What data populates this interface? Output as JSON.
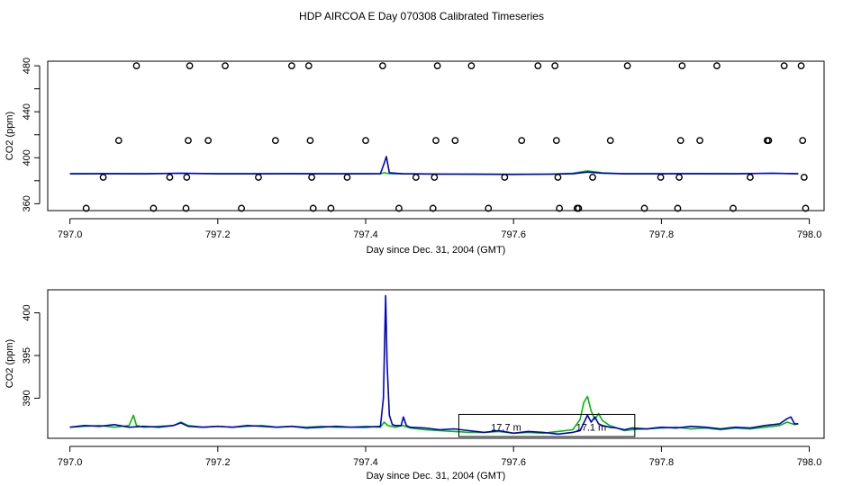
{
  "figure": {
    "title": "HDP AIRCOA E  Day 070308  Calibrated Timeseries"
  },
  "colors": {
    "green": "#00bb00",
    "blue": "#0000cc",
    "black": "#000000"
  },
  "chart_data": [
    {
      "type": "scatter",
      "xlabel": "Day since Dec. 31, 2004 (GMT)",
      "ylabel": "CO2 (ppm)",
      "xlim": [
        796.97,
        798.02
      ],
      "ylim": [
        354,
        484
      ],
      "xticks": [
        "797.0",
        "797.2",
        "797.4",
        "797.6",
        "797.8",
        "798.0"
      ],
      "yticks": [
        "360",
        "400",
        "440",
        "480"
      ],
      "y_minor_ticks": [
        380,
        420,
        460
      ],
      "grid": false,
      "points": [
        {
          "x": 797.022,
          "y": 356
        },
        {
          "x": 797.045,
          "y": 383
        },
        {
          "x": 797.066,
          "y": 415
        },
        {
          "x": 797.09,
          "y": 480
        },
        {
          "x": 797.113,
          "y": 356
        },
        {
          "x": 797.135,
          "y": 383
        },
        {
          "x": 797.157,
          "y": 356
        },
        {
          "x": 797.158,
          "y": 383
        },
        {
          "x": 797.16,
          "y": 415
        },
        {
          "x": 797.162,
          "y": 480
        },
        {
          "x": 797.187,
          "y": 415
        },
        {
          "x": 797.21,
          "y": 480
        },
        {
          "x": 797.232,
          "y": 356
        },
        {
          "x": 797.255,
          "y": 383
        },
        {
          "x": 797.278,
          "y": 415
        },
        {
          "x": 797.3,
          "y": 480
        },
        {
          "x": 797.323,
          "y": 480
        },
        {
          "x": 797.325,
          "y": 415
        },
        {
          "x": 797.327,
          "y": 383
        },
        {
          "x": 797.329,
          "y": 356
        },
        {
          "x": 797.353,
          "y": 356
        },
        {
          "x": 797.375,
          "y": 383
        },
        {
          "x": 797.4,
          "y": 415
        },
        {
          "x": 797.423,
          "y": 480
        },
        {
          "x": 797.445,
          "y": 356
        },
        {
          "x": 797.468,
          "y": 383
        },
        {
          "x": 797.491,
          "y": 356
        },
        {
          "x": 797.493,
          "y": 383
        },
        {
          "x": 797.495,
          "y": 415
        },
        {
          "x": 797.497,
          "y": 480
        },
        {
          "x": 797.521,
          "y": 415
        },
        {
          "x": 797.543,
          "y": 480
        },
        {
          "x": 797.566,
          "y": 356
        },
        {
          "x": 797.588,
          "y": 383
        },
        {
          "x": 797.611,
          "y": 415
        },
        {
          "x": 797.633,
          "y": 480
        },
        {
          "x": 797.656,
          "y": 480
        },
        {
          "x": 797.658,
          "y": 415
        },
        {
          "x": 797.66,
          "y": 383
        },
        {
          "x": 797.662,
          "y": 356
        },
        {
          "x": 797.686,
          "y": 356
        },
        {
          "x": 797.688,
          "y": 356
        },
        {
          "x": 797.707,
          "y": 383
        },
        {
          "x": 797.731,
          "y": 415
        },
        {
          "x": 797.754,
          "y": 480
        },
        {
          "x": 797.777,
          "y": 356
        },
        {
          "x": 797.799,
          "y": 383
        },
        {
          "x": 797.822,
          "y": 356
        },
        {
          "x": 797.824,
          "y": 383
        },
        {
          "x": 797.826,
          "y": 415
        },
        {
          "x": 797.828,
          "y": 480
        },
        {
          "x": 797.852,
          "y": 415
        },
        {
          "x": 797.875,
          "y": 480
        },
        {
          "x": 797.897,
          "y": 356
        },
        {
          "x": 797.92,
          "y": 383
        },
        {
          "x": 797.943,
          "y": 415
        },
        {
          "x": 797.945,
          "y": 415
        },
        {
          "x": 797.966,
          "y": 480
        },
        {
          "x": 797.989,
          "y": 480
        },
        {
          "x": 797.991,
          "y": 415
        },
        {
          "x": 797.993,
          "y": 383
        },
        {
          "x": 797.995,
          "y": 356
        }
      ],
      "series": [
        {
          "color": "green",
          "x": [
            797.0,
            797.05,
            797.1,
            797.15,
            797.2,
            797.25,
            797.3,
            797.35,
            797.4,
            797.42,
            797.425,
            797.428,
            797.435,
            797.45,
            797.5,
            797.55,
            797.6,
            797.65,
            797.68,
            797.7,
            797.72,
            797.75,
            797.8,
            797.85,
            797.9,
            797.95,
            797.985
          ],
          "y": [
            386,
            386,
            386,
            386.4,
            386,
            386,
            386,
            386,
            386,
            386,
            387,
            386.5,
            386,
            386,
            385.8,
            385.7,
            385.6,
            385.8,
            386.5,
            388.5,
            387,
            386,
            386,
            386,
            386,
            386.5,
            386
          ]
        },
        {
          "color": "blue",
          "x": [
            797.0,
            797.05,
            797.1,
            797.15,
            797.2,
            797.25,
            797.3,
            797.35,
            797.4,
            797.42,
            797.425,
            797.428,
            797.432,
            797.45,
            797.5,
            797.55,
            797.6,
            797.65,
            797.68,
            797.7,
            797.72,
            797.75,
            797.8,
            797.85,
            797.9,
            797.95,
            797.985
          ],
          "y": [
            386,
            386.2,
            386,
            386.5,
            386,
            386,
            386.2,
            386,
            386,
            386.2,
            395,
            401,
            387,
            386,
            385.8,
            385.6,
            385.5,
            385.7,
            386,
            387.5,
            386.5,
            386,
            386,
            386.2,
            386,
            386.5,
            386
          ]
        }
      ]
    },
    {
      "type": "line",
      "xlabel": "Day since Dec. 31, 2004 (GMT)",
      "ylabel": "CO2 (ppm)",
      "xlim": [
        796.97,
        798.02
      ],
      "ylim": [
        385.3,
        402.7
      ],
      "xticks": [
        "797.0",
        "797.2",
        "797.4",
        "797.6",
        "797.8",
        "798.0"
      ],
      "yticks": [
        "390",
        "395",
        "400"
      ],
      "grid": false,
      "box": {
        "x1": 797.526,
        "x2": 797.764,
        "y1": 385.5,
        "y2": 388.1
      },
      "annotations": [
        {
          "text": "17.7 m",
          "x": 797.59,
          "y": 386.6
        },
        {
          "text": "17.1 m",
          "x": 797.705,
          "y": 386.6
        }
      ],
      "series": [
        {
          "color": "green",
          "x": [
            797.0,
            797.02,
            797.04,
            797.06,
            797.08,
            797.086,
            797.09,
            797.1,
            797.12,
            797.14,
            797.15,
            797.16,
            797.18,
            797.2,
            797.22,
            797.24,
            797.26,
            797.28,
            797.3,
            797.32,
            797.34,
            797.36,
            797.38,
            797.4,
            797.42,
            797.425,
            797.43,
            797.44,
            797.45,
            797.46,
            797.48,
            797.5,
            797.52,
            797.54,
            797.56,
            797.58,
            797.6,
            797.62,
            797.64,
            797.66,
            797.68,
            797.69,
            797.695,
            797.7,
            797.705,
            797.71,
            797.715,
            797.72,
            797.73,
            797.74,
            797.75,
            797.76,
            797.78,
            797.8,
            797.82,
            797.84,
            797.86,
            797.88,
            797.9,
            797.92,
            797.94,
            797.96,
            797.97,
            797.98,
            797.985
          ],
          "y": [
            386.6,
            386.7,
            386.8,
            386.6,
            386.8,
            388.0,
            386.8,
            386.6,
            386.7,
            386.8,
            387.2,
            386.8,
            386.6,
            386.7,
            386.6,
            386.7,
            386.8,
            386.6,
            386.7,
            386.6,
            386.7,
            386.6,
            386.6,
            386.7,
            386.6,
            387.2,
            386.8,
            386.6,
            386.8,
            386.5,
            386.3,
            386.2,
            386.1,
            386.0,
            386.0,
            386.1,
            385.9,
            386.0,
            385.9,
            386.1,
            386.3,
            387.5,
            389.5,
            390.2,
            388.5,
            387.5,
            388.2,
            387.4,
            386.8,
            386.5,
            386.2,
            386.3,
            386.4,
            386.5,
            386.6,
            386.4,
            386.5,
            386.3,
            386.5,
            386.4,
            386.6,
            386.8,
            387.2,
            386.9,
            387.0
          ]
        },
        {
          "color": "blue",
          "x": [
            797.0,
            797.02,
            797.04,
            797.06,
            797.08,
            797.1,
            797.12,
            797.14,
            797.15,
            797.16,
            797.18,
            797.2,
            797.22,
            797.24,
            797.26,
            797.28,
            797.3,
            797.32,
            797.34,
            797.36,
            797.38,
            797.4,
            797.42,
            797.424,
            797.427,
            797.429,
            797.432,
            797.436,
            797.44,
            797.448,
            797.451,
            797.455,
            797.46,
            797.48,
            797.5,
            797.52,
            797.54,
            797.56,
            797.58,
            797.6,
            797.62,
            797.64,
            797.66,
            797.68,
            797.69,
            797.7,
            797.705,
            797.71,
            797.715,
            797.72,
            797.73,
            797.74,
            797.75,
            797.76,
            797.78,
            797.8,
            797.82,
            797.84,
            797.86,
            797.88,
            797.9,
            797.92,
            797.94,
            797.96,
            797.97,
            797.975,
            797.98,
            797.985
          ],
          "y": [
            386.6,
            386.8,
            386.7,
            386.9,
            386.6,
            386.7,
            386.6,
            386.8,
            387.1,
            386.7,
            386.6,
            386.7,
            386.6,
            386.8,
            386.7,
            386.6,
            386.7,
            386.5,
            386.6,
            386.7,
            386.6,
            386.6,
            386.7,
            390.0,
            402.0,
            394.0,
            388.0,
            386.9,
            386.8,
            386.8,
            387.8,
            386.8,
            386.6,
            386.5,
            386.3,
            386.4,
            386.2,
            386.0,
            386.2,
            385.9,
            386.1,
            386.0,
            385.8,
            386.0,
            386.2,
            388.0,
            387.2,
            387.8,
            387.0,
            386.8,
            386.6,
            386.5,
            386.3,
            386.5,
            386.4,
            386.6,
            386.5,
            386.7,
            386.6,
            386.4,
            386.6,
            386.5,
            386.8,
            387.0,
            387.6,
            387.8,
            387.0,
            387.0
          ]
        }
      ]
    }
  ]
}
